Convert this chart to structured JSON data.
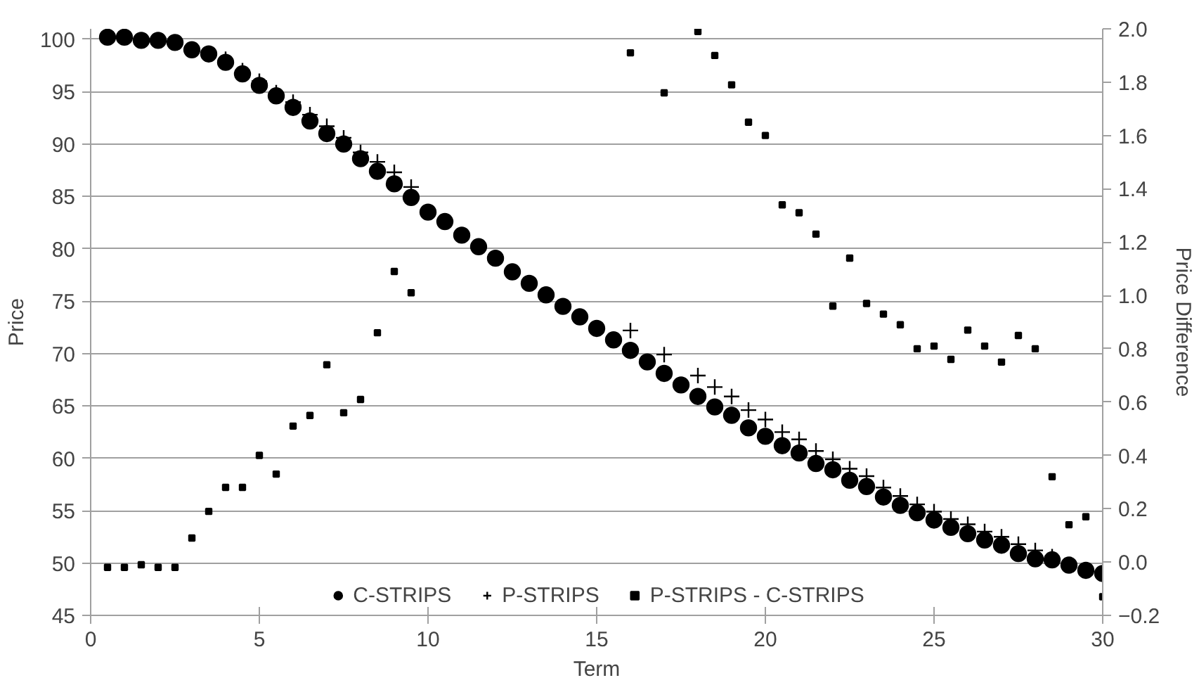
{
  "chart_data": {
    "type": "scatter",
    "xlabel": "Term",
    "ylabel": "Price",
    "y2label": "Price Difference",
    "x": [
      0.5,
      1,
      1.5,
      2,
      2.5,
      3,
      3.5,
      4,
      4.5,
      5,
      5.5,
      6,
      6.5,
      7,
      7.5,
      8,
      8.5,
      9,
      9.5,
      10,
      10.5,
      11,
      11.5,
      12,
      12.5,
      13,
      13.5,
      14,
      14.5,
      15,
      15.5,
      16,
      16.5,
      17,
      17.5,
      18,
      18.5,
      19,
      19.5,
      20,
      20.5,
      21,
      21.5,
      22,
      22.5,
      23,
      23.5,
      24,
      24.5,
      25,
      25.5,
      26,
      26.5,
      27,
      27.5,
      28,
      28.5,
      29,
      29.5,
      30
    ],
    "series": [
      {
        "name": "C-STRIPS",
        "color": "#000000",
        "marker": "circle",
        "values": [
          100.2,
          100.2,
          99.9,
          99.9,
          99.7,
          99.0,
          98.6,
          97.8,
          96.7,
          95.6,
          94.6,
          93.5,
          92.2,
          91.0,
          90.0,
          88.6,
          87.4,
          86.2,
          84.9,
          83.5,
          82.6,
          81.3,
          80.2,
          79.1,
          77.8,
          76.7,
          75.6,
          74.5,
          73.5,
          72.4,
          71.3,
          70.3,
          69.2,
          68.1,
          67.0,
          65.9,
          64.9,
          64.1,
          62.9,
          62.1,
          61.2,
          60.5,
          59.5,
          58.9,
          57.9,
          57.3,
          56.3,
          55.5,
          54.8,
          54.1,
          53.4,
          52.8,
          52.2,
          51.7,
          50.9,
          50.4,
          50.3,
          49.8,
          49.3,
          49.0
        ]
      },
      {
        "name": "P-STRIPS",
        "color": "#000000",
        "marker": "cross",
        "values": [
          null,
          null,
          null,
          null,
          null,
          null,
          null,
          98.1,
          97.0,
          96.0,
          94.9,
          94.0,
          92.8,
          91.7,
          90.6,
          89.2,
          88.3,
          87.3,
          85.9,
          null,
          null,
          null,
          null,
          null,
          null,
          null,
          null,
          null,
          null,
          null,
          null,
          72.2,
          null,
          69.9,
          null,
          67.9,
          66.8,
          65.9,
          64.6,
          63.7,
          62.5,
          61.8,
          60.7,
          59.9,
          59.0,
          58.3,
          57.2,
          56.4,
          55.6,
          54.9,
          54.2,
          53.7,
          53.0,
          52.5,
          51.8,
          51.2,
          50.6,
          null,
          null,
          null
        ]
      },
      {
        "name": "P-STRIPS - C-STRIPS",
        "color": "#000000",
        "marker": "square",
        "axis": "y2",
        "values": [
          -0.02,
          -0.02,
          -0.01,
          -0.02,
          -0.02,
          0.09,
          0.19,
          0.28,
          0.28,
          0.4,
          0.33,
          0.51,
          0.55,
          0.74,
          0.56,
          0.61,
          0.86,
          1.09,
          1.01,
          null,
          null,
          null,
          null,
          null,
          null,
          null,
          null,
          null,
          null,
          null,
          null,
          1.91,
          null,
          1.76,
          null,
          1.99,
          1.9,
          1.79,
          1.65,
          1.6,
          1.34,
          1.31,
          1.23,
          0.96,
          1.14,
          0.97,
          0.93,
          0.89,
          0.8,
          0.81,
          0.76,
          0.87,
          0.81,
          0.75,
          0.85,
          0.8,
          0.32,
          0.14,
          0.17,
          -0.13
        ]
      }
    ],
    "xlim": [
      0,
      30
    ],
    "xticks": [
      0,
      5,
      10,
      15,
      20,
      25,
      30
    ],
    "ylim": [
      45,
      101
    ],
    "yticks": [
      45,
      50,
      55,
      60,
      65,
      70,
      75,
      80,
      85,
      90,
      95,
      100
    ],
    "y2lim": [
      -0.2,
      2.0
    ],
    "y2ticks": [
      {
        "value": -0.2,
        "label": "−0.2"
      },
      {
        "value": 0,
        "label": "0.0"
      },
      {
        "value": 0.2,
        "label": "0.2"
      },
      {
        "value": 0.4,
        "label": "0.4"
      },
      {
        "value": 0.6,
        "label": "0.6"
      },
      {
        "value": 0.8,
        "label": "0.8"
      },
      {
        "value": 1.0,
        "label": "1.0"
      },
      {
        "value": 1.2,
        "label": "1.2"
      },
      {
        "value": 1.4,
        "label": "1.4"
      },
      {
        "value": 1.6,
        "label": "1.6"
      },
      {
        "value": 1.8,
        "label": "1.8"
      },
      {
        "value": 2.0,
        "label": "2.0"
      }
    ],
    "grid": "y",
    "legend": "bottom"
  }
}
